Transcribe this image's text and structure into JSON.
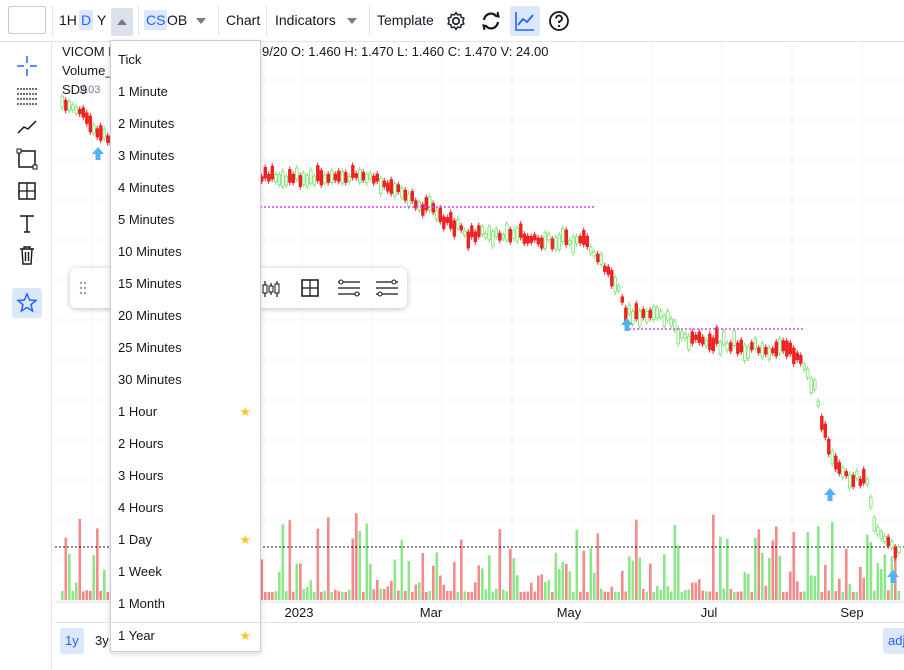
{
  "toolbar": {
    "interval_1h": "1H",
    "interval_d": "D",
    "interval_y": "Y",
    "chart_style_cs": "CS",
    "chart_style_ob": "OB",
    "chart_label": "Chart",
    "indicators_label": "Indicators",
    "template_label": "Template"
  },
  "legend": {
    "symbol": "VICOM L",
    "ohlc": "9/20  O: 1.460   H: 1.470   L: 1.460   C: 1.470   V: 24.00",
    "volume": "Volume_",
    "sd": "SD9",
    "sd_value": "2.03"
  },
  "interval_menu": {
    "items": [
      {
        "label": "Tick",
        "favorite": false
      },
      {
        "label": "1 Minute",
        "favorite": false
      },
      {
        "label": "2 Minutes",
        "favorite": false
      },
      {
        "label": "3 Minutes",
        "favorite": false
      },
      {
        "label": "4 Minutes",
        "favorite": false
      },
      {
        "label": "5 Minutes",
        "favorite": false
      },
      {
        "label": "10 Minutes",
        "favorite": false
      },
      {
        "label": "15 Minutes",
        "favorite": false
      },
      {
        "label": "20 Minutes",
        "favorite": false
      },
      {
        "label": "25 Minutes",
        "favorite": false
      },
      {
        "label": "30 Minutes",
        "favorite": false
      },
      {
        "label": "1 Hour",
        "favorite": true
      },
      {
        "label": "2 Hours",
        "favorite": false
      },
      {
        "label": "3 Hours",
        "favorite": false
      },
      {
        "label": "4 Hours",
        "favorite": false
      },
      {
        "label": "1 Day",
        "favorite": true
      },
      {
        "label": "1 Week",
        "favorite": false
      },
      {
        "label": "1 Month",
        "favorite": false
      },
      {
        "label": "1 Year",
        "favorite": true
      }
    ]
  },
  "x_axis": {
    "labels": [
      "2023",
      "Mar",
      "May",
      "Jul",
      "Sep"
    ]
  },
  "range_buttons": {
    "r1y": "1y",
    "r3y": "3y",
    "adj": "adj"
  },
  "colors": {
    "up": "#7be36f",
    "down": "#ef2222",
    "vol_up": "#8ee68a",
    "vol_down": "#f48a8a",
    "sequence": "#e040fb",
    "arrow": "#4fb3f6",
    "accent": "#2962ff"
  }
}
